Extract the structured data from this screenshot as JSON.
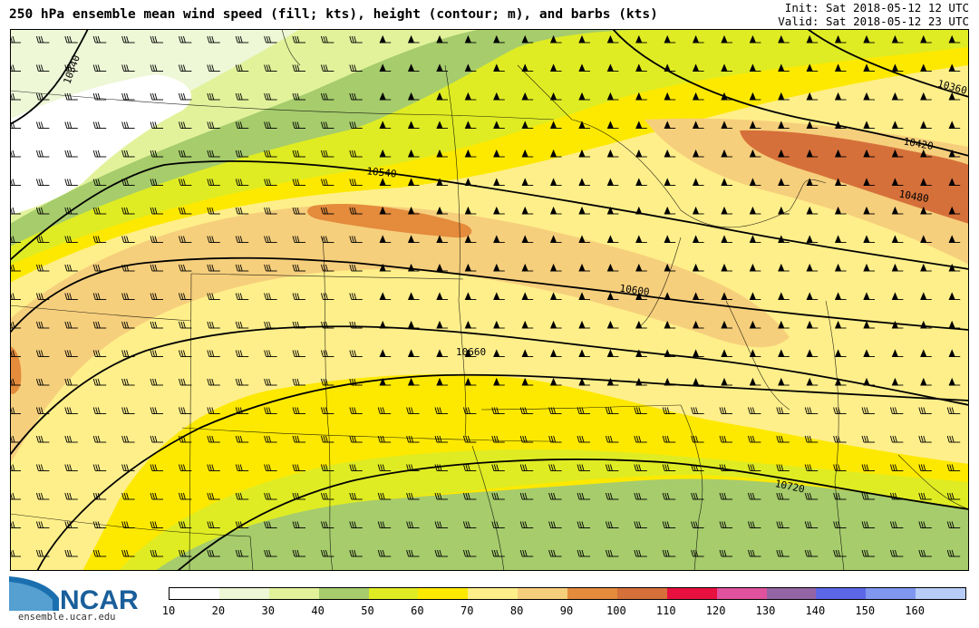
{
  "header": {
    "title": "250 hPa ensemble mean wind speed (fill; kts), height (contour; m), and barbs (kts)",
    "init": "Init: Sat 2018-05-12 12 UTC",
    "valid": "Valid: Sat 2018-05-12 23 UTC"
  },
  "logo": {
    "brand": "NCAR",
    "url": "ensemble.ucar.edu"
  },
  "colorbar": {
    "ticks": [
      "10",
      "20",
      "30",
      "40",
      "50",
      "60",
      "70",
      "80",
      "90",
      "100",
      "110",
      "120",
      "130",
      "140",
      "150",
      "160"
    ],
    "colors": [
      "#ffffff",
      "#eef7d6",
      "#e2f29b",
      "#a6cc6c",
      "#dfec23",
      "#fde900",
      "#ffef8a",
      "#f6cf7c",
      "#e48b3c",
      "#d6703a",
      "#e8103f",
      "#e0529d",
      "#9465a5",
      "#5c67e7",
      "#7f97ef",
      "#b7cdf7"
    ]
  },
  "map": {
    "contour_labels": [
      {
        "text": "10340"
      },
      {
        "text": "10360"
      },
      {
        "text": "10420"
      },
      {
        "text": "10480"
      },
      {
        "text": "10540"
      },
      {
        "text": "10600"
      },
      {
        "text": "10660"
      },
      {
        "text": "10720"
      }
    ]
  }
}
